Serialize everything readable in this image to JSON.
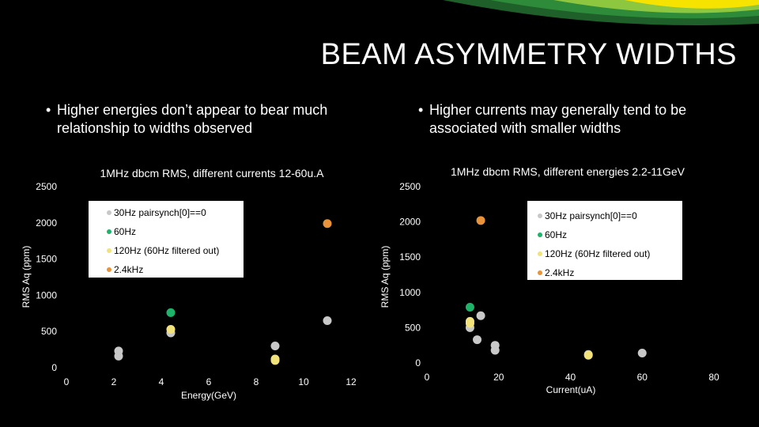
{
  "slide": {
    "title": "BEAM ASYMMETRY WIDTHS",
    "bullets": [
      "Higher energies don’t appear to bear much relationship to widths observed",
      "Higher currents may generally tend to be associated with smaller widths"
    ],
    "colors": {
      "background": "#000000",
      "swoosh_green": "#8dc63f",
      "swoosh_yellow": "#f6e400",
      "swoosh_dark": "#2e7d32"
    }
  },
  "chart_data": [
    {
      "type": "scatter",
      "title": "1MHz dbcm RMS, different currents 12-60u.A",
      "xlabel": "Energy(GeV)",
      "ylabel": "RMS Aq (ppm)",
      "xlim": [
        0,
        12
      ],
      "ylim": [
        0,
        2500
      ],
      "xticks": [
        "0",
        "2",
        "4",
        "6",
        "8",
        "10",
        "12"
      ],
      "yticks": [
        "0",
        "500",
        "1000",
        "1500",
        "2000",
        "2500"
      ],
      "grid": false,
      "legend_position": "top-center",
      "series": [
        {
          "name": "30Hz pairsynch[0]==0",
          "color": "#c8c8c8",
          "points": [
            [
              2.2,
              160
            ],
            [
              2.2,
              230
            ],
            [
              4.4,
              480
            ],
            [
              8.8,
              300
            ],
            [
              11.0,
              650
            ]
          ]
        },
        {
          "name": "60Hz",
          "color": "#1db46a",
          "points": [
            [
              4.4,
              760
            ]
          ]
        },
        {
          "name": "120Hz  (60Hz filtered out)",
          "color": "#f2e27a",
          "points": [
            [
              4.4,
              530
            ],
            [
              8.8,
              100
            ],
            [
              8.8,
              120
            ]
          ]
        },
        {
          "name": "2.4kHz",
          "color": "#e8923a",
          "points": [
            [
              11.0,
              1990
            ]
          ]
        }
      ]
    },
    {
      "type": "scatter",
      "title": "1MHz dbcm RMS, different energies 2.2-11GeV",
      "xlabel": "Current(uA)",
      "ylabel": "RMS Aq (ppm)",
      "xlim": [
        0,
        80
      ],
      "ylim": [
        0,
        2500
      ],
      "xticks": [
        "0",
        "20",
        "40",
        "60",
        "80"
      ],
      "yticks": [
        "0",
        "500",
        "1000",
        "1500",
        "2000",
        "2500"
      ],
      "grid": false,
      "legend_position": "top-right",
      "series": [
        {
          "name": "30Hz pairsynch[0]==0",
          "color": "#c8c8c8",
          "points": [
            [
              12,
              500
            ],
            [
              14,
              330
            ],
            [
              15,
              670
            ],
            [
              19,
              180
            ],
            [
              19,
              250
            ],
            [
              45,
              120
            ],
            [
              60,
              140
            ]
          ]
        },
        {
          "name": "60Hz",
          "color": "#1db46a",
          "points": [
            [
              12,
              790
            ]
          ]
        },
        {
          "name": "120Hz  (60Hz filtered out)",
          "color": "#f2e27a",
          "points": [
            [
              12,
              560
            ],
            [
              12,
              590
            ],
            [
              45,
              110
            ]
          ]
        },
        {
          "name": "2.4kHz",
          "color": "#e8923a",
          "points": [
            [
              15,
              2020
            ]
          ]
        }
      ]
    }
  ]
}
